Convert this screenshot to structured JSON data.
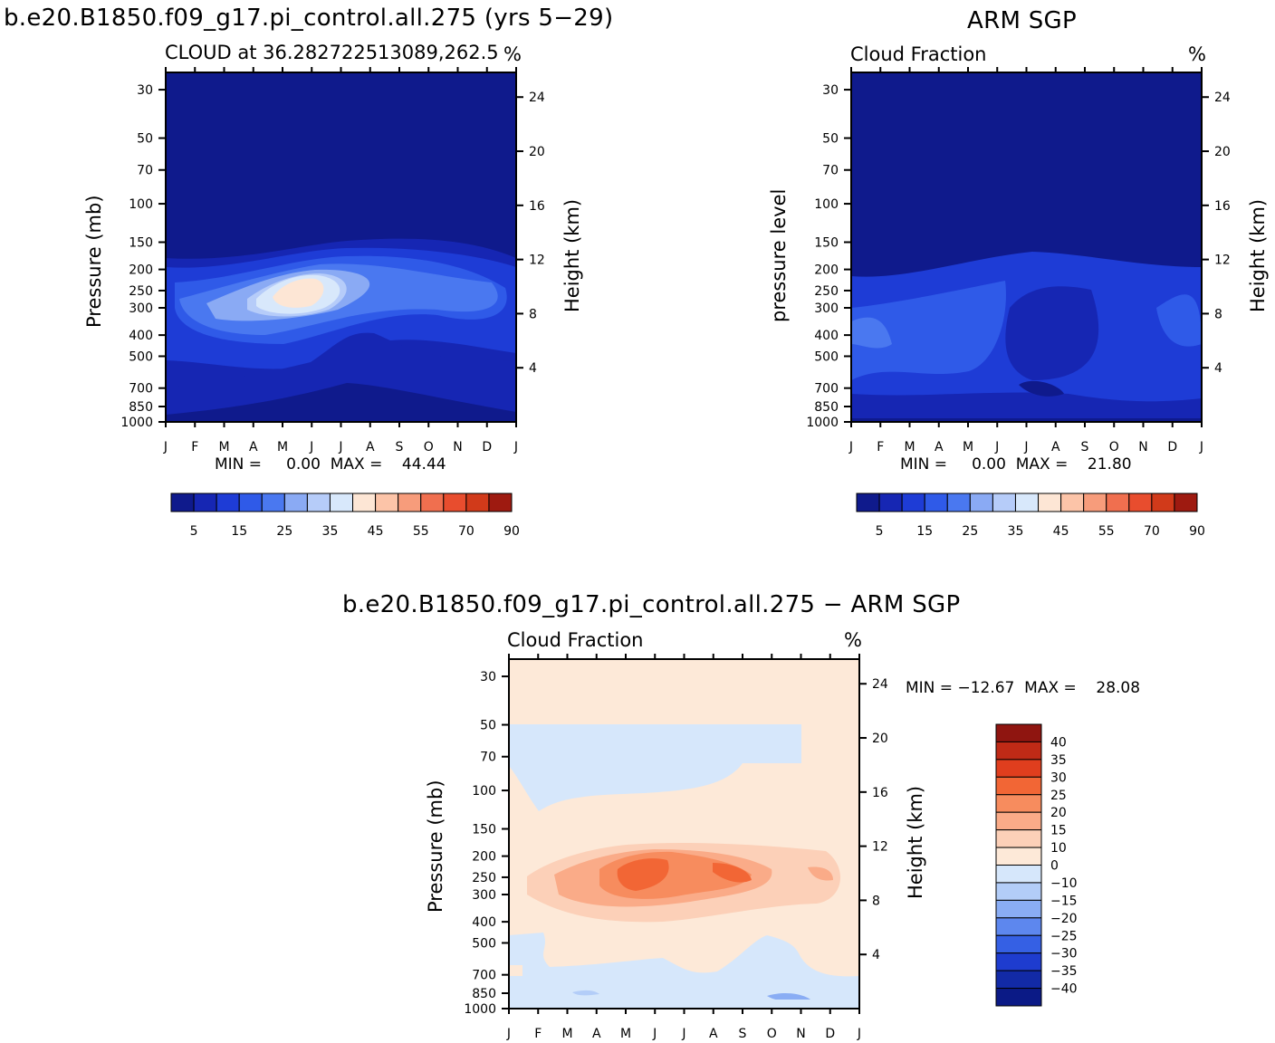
{
  "panels": {
    "model": {
      "title": "b.e20.B1850.f09_g17.pi_control.all.275 (yrs 5−29)",
      "subtitle": "CLOUD at 36.282722513089,262.5",
      "units": "%",
      "ylabel_left": "Pressure (mb)",
      "ylabel_right": "Height (km)",
      "stats": "MIN =     0.00  MAX =    44.44"
    },
    "obs": {
      "title": "ARM SGP",
      "subtitle": "Cloud Fraction",
      "units": "%",
      "ylabel_left": "pressure level",
      "ylabel_right": "Height (km)",
      "stats": "MIN =     0.00  MAX =    21.80"
    },
    "diff": {
      "title": "b.e20.B1850.f09_g17.pi_control.all.275 − ARM SGP",
      "subtitle": "Cloud Fraction",
      "units": "%",
      "ylabel_left": "Pressure (mb)",
      "ylabel_right": "Height (km)",
      "stats": "MIN = −12.67  MAX =    28.08"
    }
  },
  "chart_data": [
    {
      "type": "heatmap",
      "title": "b.e20.B1850.f09_g17.pi_control.all.275 (yrs 5−29)",
      "subtitle": "CLOUD at 36.282722513089,262.5",
      "xlabel": "",
      "ylabel": "Pressure (mb)",
      "x_ticks": [
        "J",
        "F",
        "M",
        "A",
        "M",
        "J",
        "J",
        "A",
        "S",
        "O",
        "N",
        "D",
        "J"
      ],
      "y_ticks": [
        30,
        50,
        70,
        100,
        150,
        200,
        250,
        300,
        400,
        500,
        700,
        850,
        1000
      ],
      "y_right_label": "Height (km)",
      "y_right_ticks": [
        24,
        20,
        16,
        12,
        8,
        4
      ],
      "min": 0.0,
      "max": 44.44,
      "colorbar_labels": [
        "5",
        "15",
        "25",
        "35",
        "45",
        "55",
        "70",
        "90"
      ],
      "colors": [
        "#0f1a8c",
        "#1626b3",
        "#1e3cd6",
        "#2f5ae8",
        "#4a78f0",
        "#8aaaf4",
        "#b6ccf9",
        "#d8e8fb",
        "#fde6d5",
        "#fcc4a8",
        "#f79c7b",
        "#f06f4f",
        "#e84d2e",
        "#d13a1a",
        "#9e1a10"
      ]
    },
    {
      "type": "heatmap",
      "title": "ARM SGP",
      "subtitle": "Cloud Fraction",
      "xlabel": "",
      "ylabel": "pressure level",
      "x_ticks": [
        "J",
        "F",
        "M",
        "A",
        "M",
        "J",
        "J",
        "A",
        "S",
        "O",
        "N",
        "D",
        "J"
      ],
      "y_ticks": [
        30,
        50,
        70,
        100,
        150,
        200,
        250,
        300,
        400,
        500,
        700,
        850,
        1000
      ],
      "y_right_label": "Height (km)",
      "y_right_ticks": [
        24,
        20,
        16,
        12,
        8,
        4
      ],
      "min": 0.0,
      "max": 21.8,
      "colorbar_labels": [
        "5",
        "15",
        "25",
        "35",
        "45",
        "55",
        "70",
        "90"
      ]
    },
    {
      "type": "heatmap",
      "title": "b.e20.B1850.f09_g17.pi_control.all.275 − ARM SGP",
      "subtitle": "Cloud Fraction",
      "xlabel": "",
      "ylabel": "Pressure (mb)",
      "x_ticks": [
        "J",
        "F",
        "M",
        "A",
        "M",
        "J",
        "J",
        "A",
        "S",
        "O",
        "N",
        "D",
        "J"
      ],
      "y_ticks": [
        30,
        50,
        70,
        100,
        150,
        200,
        250,
        300,
        400,
        500,
        700,
        850,
        1000
      ],
      "y_right_label": "Height (km)",
      "y_right_ticks": [
        24,
        20,
        16,
        12,
        8,
        4
      ],
      "min": -12.67,
      "max": 28.08,
      "colorbar_labels": [
        "40",
        "35",
        "30",
        "25",
        "20",
        "15",
        "10",
        "0",
        "−10",
        "−15",
        "−20",
        "−25",
        "−30",
        "−35",
        "−40"
      ],
      "colors": [
        "#8f1510",
        "#bf2a16",
        "#e03e1e",
        "#f26635",
        "#f78c5e",
        "#faab88",
        "#fcd0b8",
        "#fde9d8",
        "#d6e7fb",
        "#b3cdf8",
        "#8aadf4",
        "#5d87ee",
        "#3560e4",
        "#1e3ccf",
        "#122aa6",
        "#0b1a86"
      ]
    }
  ],
  "colors": {
    "background": "#ffffff",
    "deep_blue": "#0a0f8c",
    "diff_background": "#fde9d8"
  }
}
